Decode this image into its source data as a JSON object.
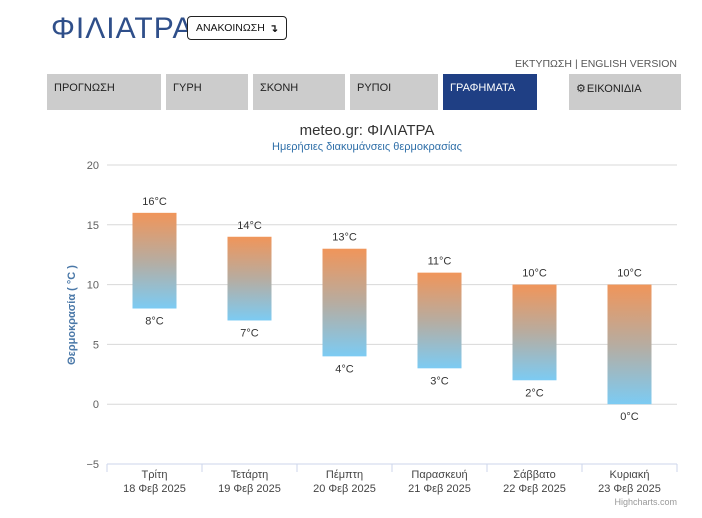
{
  "header": {
    "title": "ΦΙΛΙΑΤΡΑ",
    "announce_label": "ΑΝΑΚΟΙΝΩΣΗ",
    "announce_icon": "arrow-down-icon"
  },
  "top_links": {
    "print": "ΕΚΤΥΠΩΣΗ",
    "separator": "|",
    "english": "ENGLISH VERSION"
  },
  "nav": {
    "tabs": [
      {
        "label": "ΠΡΟΓΝΩΣΗ",
        "active": false
      },
      {
        "label": "ΓΥΡΗ",
        "active": false
      },
      {
        "label": "ΣΚΟΝΗ",
        "active": false
      },
      {
        "label": "ΡΥΠΟΙ",
        "active": false
      },
      {
        "label": "ΓΡΑΦΗΜΑΤΑ",
        "active": true
      },
      {
        "label": "ΕΙΚΟΝΙΔΙΑ",
        "active": false,
        "icon": "gear-icon"
      }
    ],
    "active_color": "#1f3f84",
    "inactive_color": "#cccccc"
  },
  "chart_data": {
    "type": "bar",
    "subtype": "columnrange",
    "title": "meteo.gr: ΦΙΛΙΑΤΡΑ",
    "subtitle": "Ημερήσιες διακυμάνσεις θερμοκρασίας",
    "ylabel": "Θερμοκρασία ( °C )",
    "xlabel": "",
    "ylim": [
      -5,
      20
    ],
    "yticks": [
      "−5",
      "0",
      "5",
      "10",
      "15",
      "20"
    ],
    "ytick_values": [
      -5,
      0,
      5,
      10,
      15,
      20
    ],
    "grid": true,
    "categories": [
      {
        "day": "Τρίτη",
        "date": "18 Φεβ 2025"
      },
      {
        "day": "Τετάρτη",
        "date": "19 Φεβ 2025"
      },
      {
        "day": "Πέμπτη",
        "date": "20 Φεβ 2025"
      },
      {
        "day": "Παρασκευή",
        "date": "21 Φεβ 2025"
      },
      {
        "day": "Σάββατο",
        "date": "22 Φεβ 2025"
      },
      {
        "day": "Κυριακή",
        "date": "23 Φεβ 2025"
      }
    ],
    "low": [
      8,
      7,
      4,
      3,
      2,
      0
    ],
    "high": [
      16,
      14,
      13,
      11,
      10,
      10
    ],
    "low_labels": [
      "8°C",
      "7°C",
      "4°C",
      "3°C",
      "2°C",
      "0°C"
    ],
    "high_labels": [
      "16°C",
      "14°C",
      "13°C",
      "11°C",
      "10°C",
      "10°C"
    ],
    "colors": {
      "high": "#f0955a",
      "low": "#7ccbf3",
      "title": "#333333",
      "subtitle": "#2f6fa8",
      "axis_title": "#4a78a8"
    },
    "credits": "Highcharts.com"
  }
}
